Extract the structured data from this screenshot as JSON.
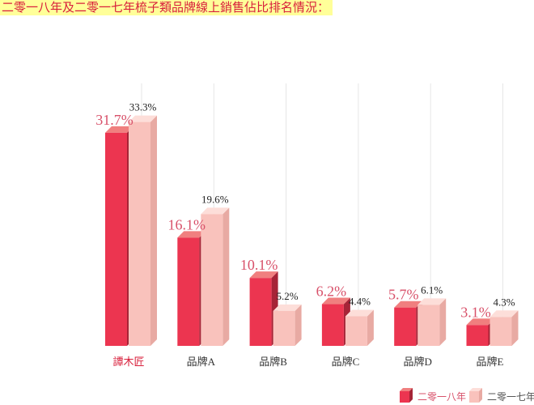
{
  "title": "二零一八年及二零一七年梳子類品牌線上銷售佔比排名情況：",
  "chart_data": {
    "type": "bar",
    "categories": [
      "譚木匠",
      "品牌A",
      "品牌B",
      "品牌C",
      "品牌D",
      "品牌E"
    ],
    "series": [
      {
        "name": "二零一八年",
        "values": [
          31.7,
          16.1,
          10.1,
          6.2,
          5.7,
          3.1
        ]
      },
      {
        "name": "二零一七年",
        "values": [
          33.3,
          19.6,
          5.2,
          4.4,
          6.1,
          4.3
        ]
      }
    ],
    "data_labels": [
      [
        "31.7%",
        "16.1%",
        "10.1%",
        "6.2%",
        "5.7%",
        "3.1%"
      ],
      [
        "33.3%",
        "19.6%",
        "5.2%",
        "4.4%",
        "6.1%",
        "4.3%"
      ]
    ],
    "ylim": [
      0,
      36
    ],
    "grid": true,
    "legend": "bottom-right",
    "colors": {
      "s1_front": "#ec3550",
      "s1_top": "#f07f7f",
      "s1_side": "#a62437",
      "s2_front": "#f9c2bc",
      "s2_top": "#fdded9",
      "s2_side": "#e8aaa3",
      "s1_label": "#d8516a",
      "s2_label": "#222222",
      "first_category": "#d8203c",
      "other_category": "#333333",
      "grid": "#e6e6e6"
    }
  }
}
